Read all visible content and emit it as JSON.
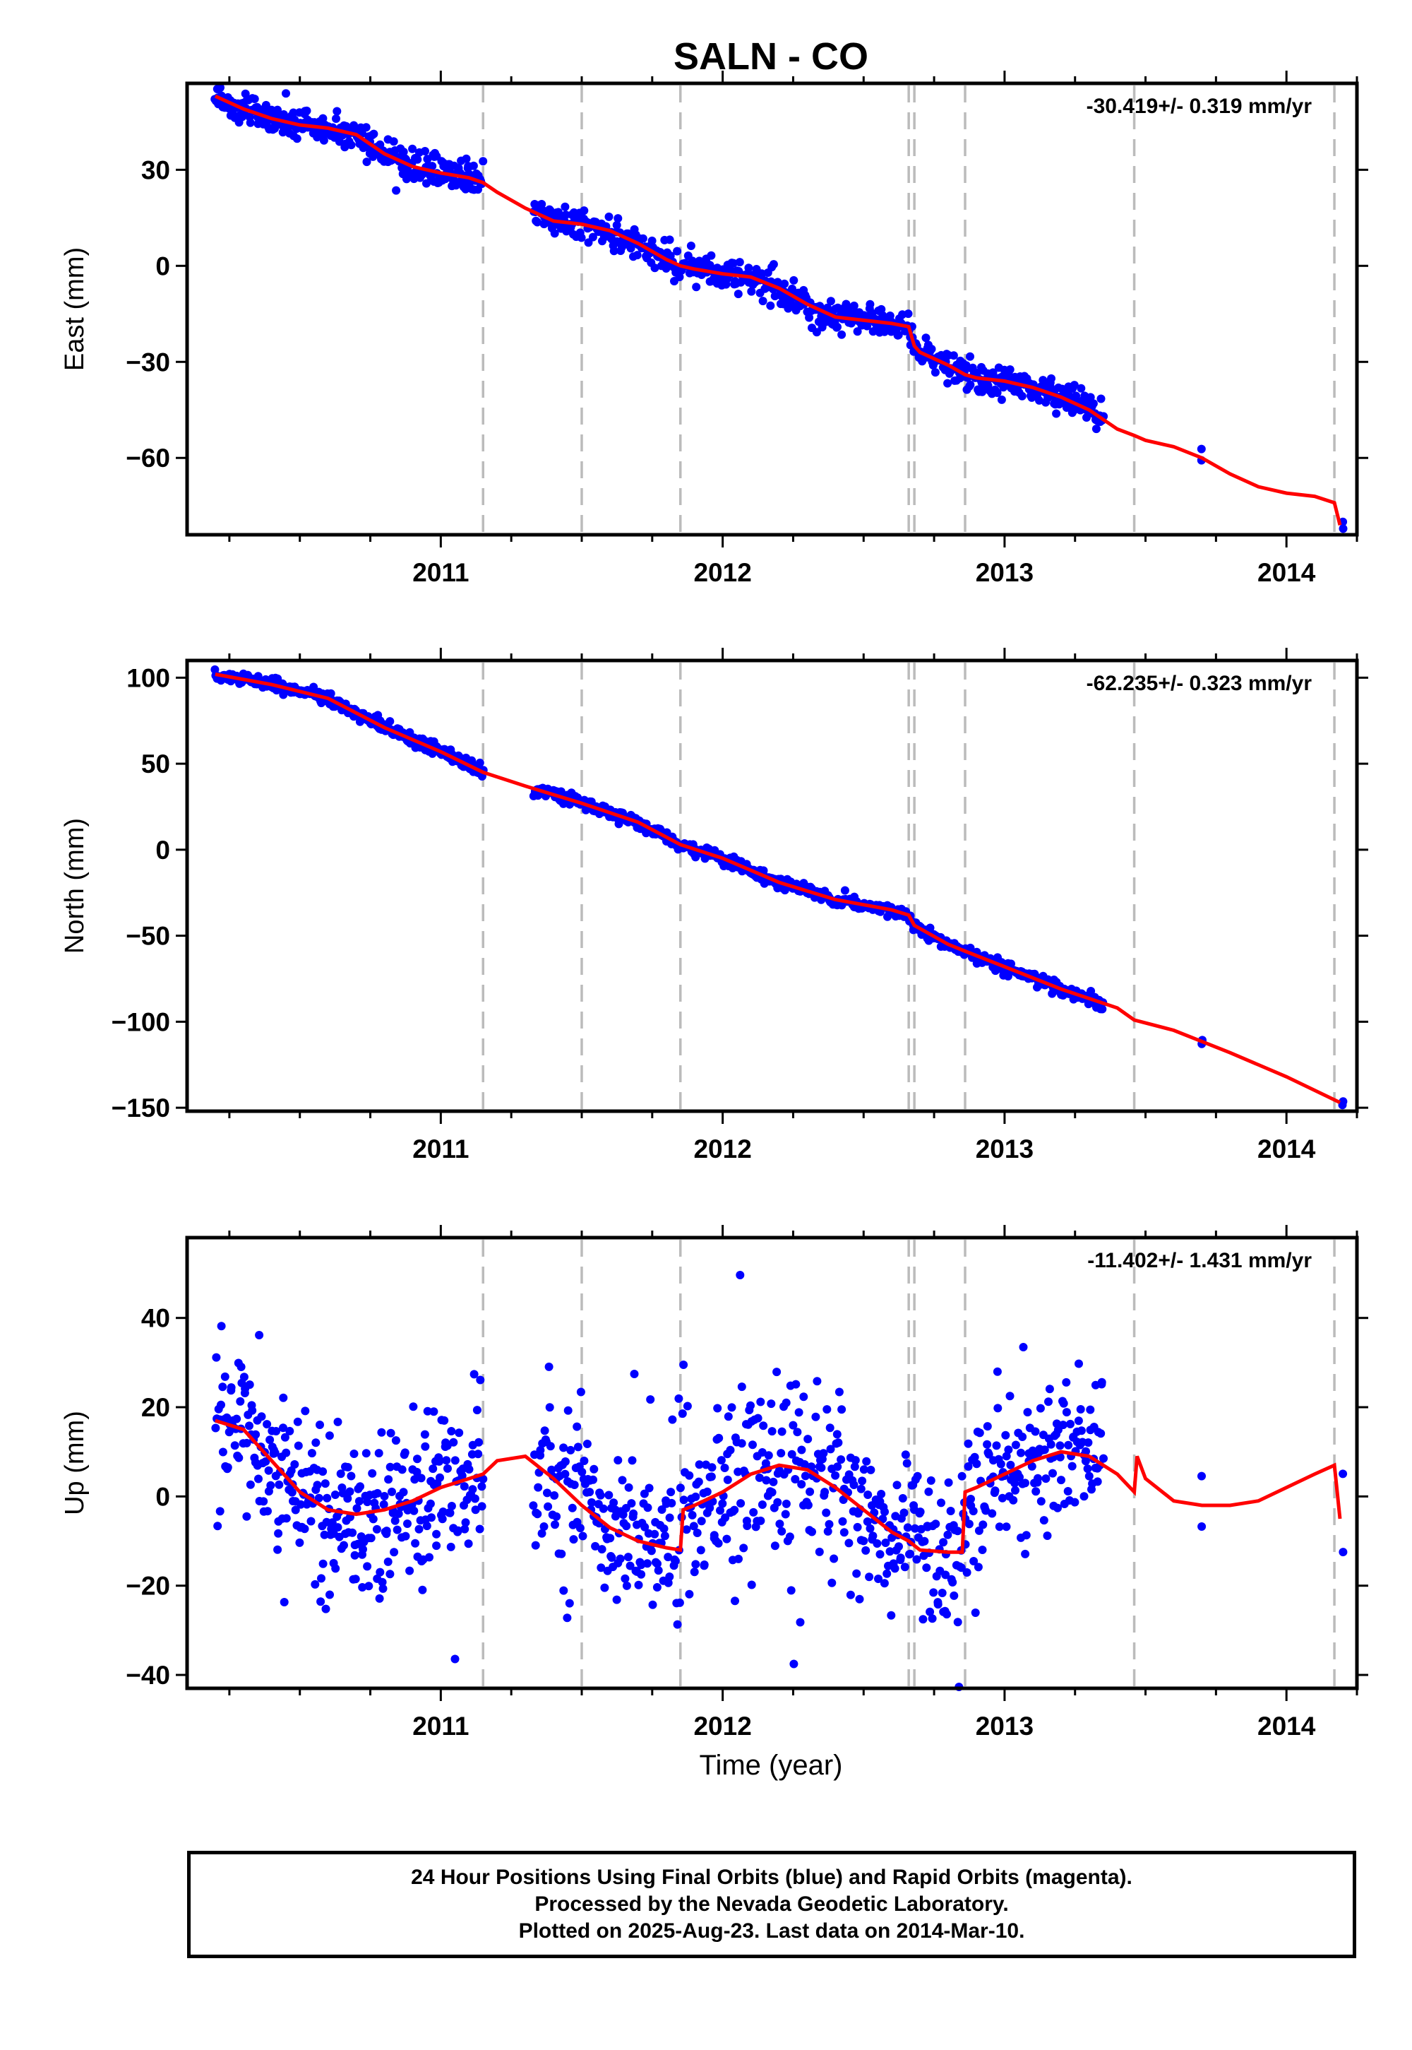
{
  "figure": {
    "title": "SALN - CO",
    "xlabel": "Time (year)",
    "caption": [
      "24 Hour Positions Using Final Orbits (blue) and Rapid Orbits (magenta).",
      "Processed by the Nevada Geodetic Laboratory.",
      "Plotted on 2025-Aug-23. Last data on 2014-Mar-10."
    ]
  },
  "colors": {
    "data": "#0000ff",
    "model": "#ff0000",
    "steps": "#bbbbbb",
    "axes": "#000000"
  },
  "chart_data": [
    {
      "type": "scatter",
      "component": "East",
      "ylabel": "East (mm)",
      "rate_text": "-30.419+/- 0.319 mm/yr",
      "xlim": [
        2010.1,
        2014.25
      ],
      "ylim": [
        -84,
        57
      ],
      "yticks": [
        30,
        0,
        -30,
        -60
      ],
      "ytick_labels": [
        "30",
        "0",
        "−30",
        "−60"
      ],
      "xticks": [
        2011,
        2012,
        2013,
        2014
      ],
      "xtick_labels": [
        "2011",
        "2012",
        "2013",
        "2014"
      ],
      "steps": [
        2011.15,
        2011.5,
        2011.85,
        2012.66,
        2012.68,
        2012.86,
        2013.46,
        2014.17
      ],
      "model": {
        "x": [
          2010.2,
          2010.3,
          2010.4,
          2010.5,
          2010.6,
          2010.7,
          2010.8,
          2010.9,
          2011.0,
          2011.1,
          2011.15,
          2011.2,
          2011.3,
          2011.4,
          2011.5,
          2011.6,
          2011.7,
          2011.8,
          2011.85,
          2011.9,
          2012.0,
          2012.1,
          2012.2,
          2012.3,
          2012.4,
          2012.5,
          2012.6,
          2012.66,
          2012.68,
          2012.7,
          2012.8,
          2012.86,
          2012.9,
          2013.0,
          2013.1,
          2013.2,
          2013.3,
          2013.4,
          2013.46,
          2013.5,
          2013.6,
          2013.7,
          2013.8,
          2013.9,
          2014.0,
          2014.1,
          2014.17,
          2014.19
        ],
        "y": [
          53,
          49,
          46,
          44,
          43,
          41,
          35,
          31,
          29,
          27.5,
          26,
          23,
          18,
          14,
          13,
          11,
          7,
          2,
          0,
          -1,
          -2.5,
          -3.5,
          -7,
          -12,
          -16,
          -17,
          -18,
          -19,
          -25,
          -27,
          -31,
          -34,
          -35,
          -36,
          -38,
          -41,
          -45,
          -51,
          -53,
          -54.5,
          -56.5,
          -60,
          -65,
          -69,
          -71,
          -72,
          -74,
          -81
        ]
      },
      "segments": [
        {
          "start": 2010.2,
          "end": 2011.15,
          "n": 310,
          "noise": 2.5,
          "outlier": 0
        },
        {
          "start": 2011.33,
          "end": 2013.35,
          "n": 620,
          "noise": 2.5,
          "outlier": 0
        },
        {
          "start": 2013.7,
          "end": 2013.7,
          "n": 2,
          "noise": 2,
          "outlier": 0
        },
        {
          "start": 2014.2,
          "end": 2014.2,
          "n": 2,
          "noise": 1.5,
          "outlier": 0
        }
      ]
    },
    {
      "type": "scatter",
      "component": "North",
      "ylabel": "North (mm)",
      "rate_text": "-62.235+/- 0.323 mm/yr",
      "xlim": [
        2010.1,
        2014.25
      ],
      "ylim": [
        -152,
        110
      ],
      "yticks": [
        100,
        50,
        0,
        -50,
        -100,
        -150
      ],
      "ytick_labels": [
        "100",
        "50",
        "0",
        "−50",
        "−100",
        "−150"
      ],
      "xticks": [
        2011,
        2012,
        2013,
        2014
      ],
      "xtick_labels": [
        "2011",
        "2012",
        "2013",
        "2014"
      ],
      "steps": [
        2011.15,
        2011.5,
        2011.85,
        2012.66,
        2012.68,
        2012.86,
        2013.46,
        2014.17
      ],
      "model": {
        "x": [
          2010.2,
          2010.4,
          2010.6,
          2010.8,
          2011.0,
          2011.15,
          2011.3,
          2011.5,
          2011.7,
          2011.85,
          2012.0,
          2012.2,
          2012.4,
          2012.6,
          2012.66,
          2012.68,
          2012.8,
          2012.86,
          2013.0,
          2013.2,
          2013.4,
          2013.46,
          2013.6,
          2013.8,
          2014.0,
          2014.19
        ],
        "y": [
          102,
          96,
          88,
          71,
          57,
          45,
          37,
          27,
          16,
          3,
          -5,
          -19,
          -29,
          -35,
          -38,
          -44,
          -55,
          -59,
          -68,
          -81,
          -92,
          -99,
          -105,
          -118,
          -132,
          -147
        ]
      },
      "segments": [
        {
          "start": 2010.2,
          "end": 2011.15,
          "n": 310,
          "noise": 1.8,
          "outlier": 0
        },
        {
          "start": 2011.33,
          "end": 2013.35,
          "n": 620,
          "noise": 1.8,
          "outlier": 0
        },
        {
          "start": 2013.7,
          "end": 2013.7,
          "n": 2,
          "noise": 1.5,
          "outlier": 0
        },
        {
          "start": 2014.2,
          "end": 2014.2,
          "n": 2,
          "noise": 1,
          "outlier": 0
        }
      ]
    },
    {
      "type": "scatter",
      "component": "Up",
      "ylabel": "Up (mm)",
      "rate_text": "-11.402+/- 1.431 mm/yr",
      "xlim": [
        2010.1,
        2014.25
      ],
      "ylim": [
        -43,
        58
      ],
      "yticks": [
        40,
        20,
        0,
        -20,
        -40
      ],
      "ytick_labels": [
        "40",
        "20",
        "0",
        "−20",
        "−40"
      ],
      "xticks": [
        2011,
        2012,
        2013,
        2014
      ],
      "xtick_labels": [
        "2011",
        "2012",
        "2013",
        "2014"
      ],
      "steps": [
        2011.15,
        2011.5,
        2011.85,
        2012.66,
        2012.68,
        2012.86,
        2013.46,
        2014.17
      ],
      "model": {
        "x": [
          2010.2,
          2010.3,
          2010.4,
          2010.5,
          2010.6,
          2010.7,
          2010.8,
          2010.9,
          2011.0,
          2011.1,
          2011.15,
          2011.2,
          2011.3,
          2011.4,
          2011.5,
          2011.6,
          2011.7,
          2011.8,
          2011.85,
          2011.86,
          2011.9,
          2012.0,
          2012.1,
          2012.2,
          2012.3,
          2012.4,
          2012.5,
          2012.6,
          2012.66,
          2012.68,
          2012.7,
          2012.8,
          2012.85,
          2012.86,
          2012.9,
          2013.0,
          2013.1,
          2013.2,
          2013.3,
          2013.4,
          2013.46,
          2013.47,
          2013.5,
          2013.6,
          2013.7,
          2013.8,
          2013.9,
          2014.0,
          2014.1,
          2014.17,
          2014.19
        ],
        "y": [
          17,
          15,
          8,
          1,
          -3,
          -4,
          -3,
          -1,
          2,
          4,
          5,
          8,
          9,
          4,
          -2,
          -7,
          -10,
          -11.5,
          -12,
          -3,
          -2,
          1,
          5,
          7,
          6,
          2,
          -3,
          -8,
          -10,
          -11,
          -12,
          -12.5,
          -12.5,
          1,
          2,
          5,
          8,
          10,
          9,
          5,
          1,
          9,
          4,
          -1,
          -2,
          -2,
          -1,
          2,
          5,
          7,
          -5
        ]
      },
      "segments": [
        {
          "start": 2010.2,
          "end": 2011.15,
          "n": 330,
          "noise": 9,
          "outlier": 0.03
        },
        {
          "start": 2011.33,
          "end": 2013.35,
          "n": 640,
          "noise": 9,
          "outlier": 0.03
        },
        {
          "start": 2013.7,
          "end": 2013.7,
          "n": 2,
          "noise": 6,
          "outlier": 0
        },
        {
          "start": 2014.2,
          "end": 2014.2,
          "n": 2,
          "noise": 8,
          "outlier": 0
        }
      ]
    }
  ]
}
